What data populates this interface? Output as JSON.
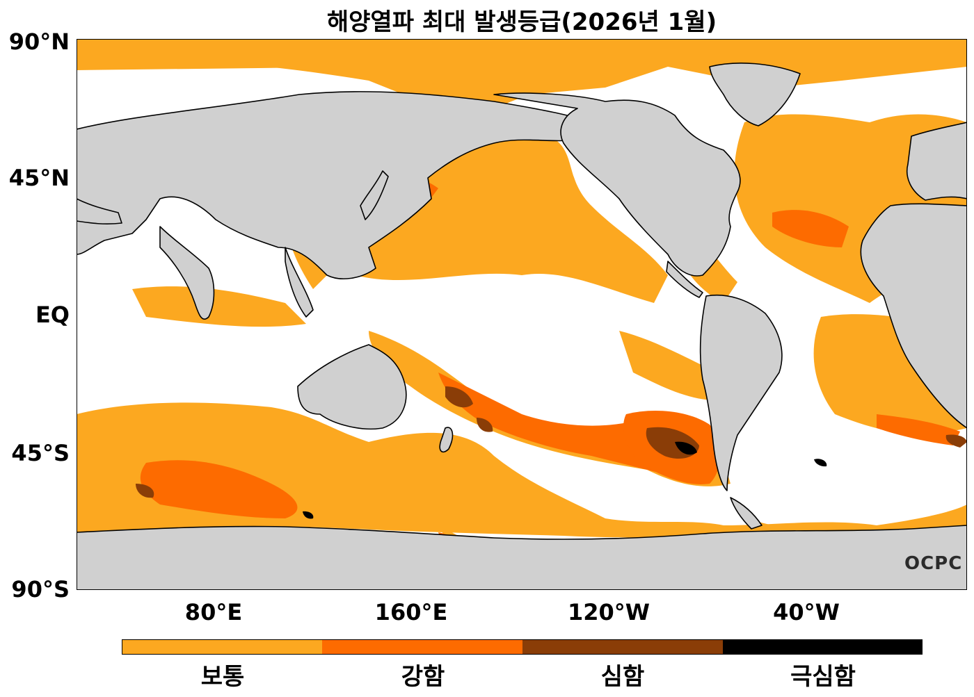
{
  "title": "해양열파 최대 발생등급(2026년 1월)",
  "map": {
    "lat_ticks": [
      "90°N",
      "45°N",
      "EQ",
      "45°S",
      "90°S"
    ],
    "lon_ticks": [
      "80°E",
      "160°E",
      "120°W",
      "40°W"
    ],
    "colors": {
      "land": "#d0d0d0",
      "ocean": "#ffffff",
      "coast": "#000000"
    }
  },
  "legend": {
    "categories": [
      {
        "label": "보통",
        "color": "#fca820"
      },
      {
        "label": "강함",
        "color": "#fd6b00"
      },
      {
        "label": "심함",
        "color": "#8a3d07"
      },
      {
        "label": "극심함",
        "color": "#000000"
      }
    ]
  },
  "watermark": {
    "text": "OCPC"
  }
}
